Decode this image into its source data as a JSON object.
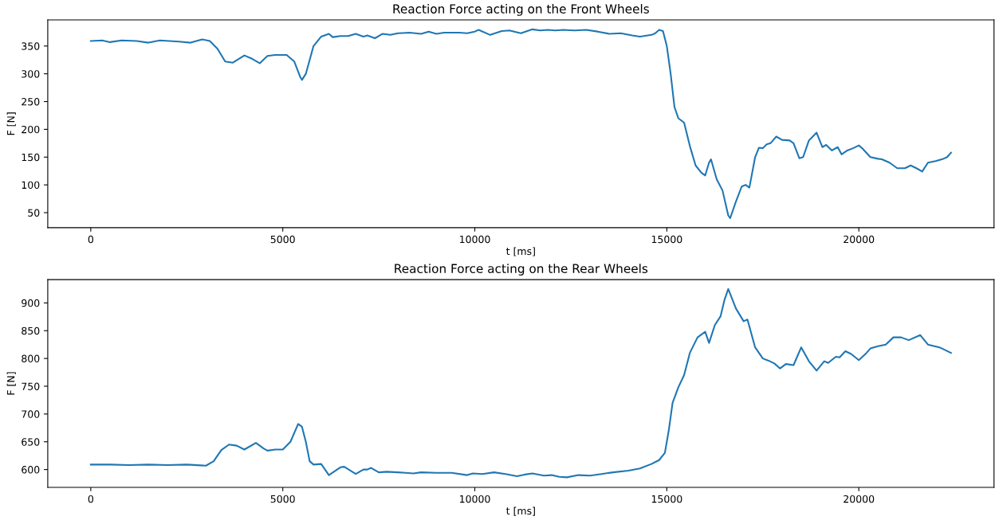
{
  "chart_data": [
    {
      "type": "line",
      "title": "Reaction Force acting on the Front Wheels",
      "xlabel": "t [ms]",
      "ylabel": "F [N]",
      "xlim": [
        -1120,
        23520
      ],
      "ylim": [
        23,
        397
      ],
      "xticks": [
        0,
        5000,
        10000,
        15000,
        20000
      ],
      "yticks": [
        50,
        100,
        150,
        200,
        250,
        300,
        350
      ],
      "grid": false,
      "series": [
        {
          "color": "#1f77b4",
          "x": [
            0,
            300,
            500,
            800,
            1200,
            1500,
            1800,
            2300,
            2600,
            2900,
            3100,
            3300,
            3500,
            3700,
            4000,
            4200,
            4400,
            4600,
            4800,
            5100,
            5300,
            5450,
            5500,
            5600,
            5800,
            6000,
            6200,
            6300,
            6500,
            6700,
            6900,
            7100,
            7200,
            7400,
            7600,
            7800,
            8000,
            8300,
            8600,
            8800,
            9000,
            9200,
            9600,
            9800,
            10000,
            10100,
            10400,
            10700,
            10900,
            11200,
            11500,
            11700,
            11900,
            12100,
            12300,
            12600,
            12900,
            13200,
            13500,
            13800,
            14100,
            14300,
            14600,
            14700,
            14800,
            14900,
            15000,
            15100,
            15200,
            15300,
            15450,
            15600,
            15750,
            15900,
            16000,
            16100,
            16150,
            16300,
            16450,
            16600,
            16650,
            16800,
            16950,
            17050,
            17150,
            17300,
            17400,
            17500,
            17600,
            17700,
            17850,
            18000,
            18200,
            18300,
            18450,
            18550,
            18700,
            18900,
            19050,
            19150,
            19300,
            19450,
            19550,
            19700,
            19850,
            20000,
            20100,
            20300,
            20500,
            20600,
            20800,
            21000,
            21200,
            21350,
            21500,
            21650,
            21800,
            22000,
            22200,
            22300,
            22400
          ],
          "values": [
            359,
            360,
            357,
            360,
            359,
            356,
            360,
            358,
            356,
            362,
            359,
            345,
            322,
            320,
            333,
            327,
            319,
            332,
            334,
            334,
            322,
            295,
            289,
            300,
            350,
            367,
            372,
            366,
            368,
            368,
            372,
            367,
            369,
            364,
            372,
            370,
            373,
            374,
            372,
            376,
            372,
            374,
            374,
            373,
            376,
            379,
            370,
            377,
            378,
            373,
            380,
            378,
            379,
            378,
            379,
            378,
            379,
            376,
            372,
            373,
            369,
            367,
            370,
            373,
            379,
            377,
            350,
            300,
            240,
            220,
            212,
            170,
            135,
            122,
            117,
            140,
            146,
            110,
            90,
            45,
            40,
            70,
            97,
            100,
            95,
            150,
            167,
            166,
            173,
            175,
            187,
            181,
            180,
            175,
            148,
            150,
            180,
            194,
            168,
            172,
            162,
            168,
            155,
            162,
            166,
            171,
            165,
            150,
            147,
            146,
            140,
            130,
            130,
            135,
            130,
            124,
            140,
            143,
            147,
            150,
            158
          ]
        }
      ]
    },
    {
      "type": "line",
      "title": "Reaction Force acting on the Rear Wheels",
      "xlabel": "t [ms]",
      "ylabel": "F [N]",
      "xlim": [
        -1120,
        23520
      ],
      "ylim": [
        568,
        942
      ],
      "xticks": [
        0,
        5000,
        10000,
        15000,
        20000
      ],
      "yticks": [
        600,
        650,
        700,
        750,
        800,
        850,
        900
      ],
      "grid": false,
      "series": [
        {
          "color": "#1f77b4",
          "x": [
            0,
            500,
            1000,
            1500,
            2000,
            2500,
            3000,
            3200,
            3400,
            3600,
            3800,
            4000,
            4300,
            4500,
            4600,
            4800,
            5000,
            5200,
            5400,
            5500,
            5600,
            5700,
            5800,
            6000,
            6200,
            6500,
            6600,
            6900,
            7100,
            7200,
            7300,
            7500,
            7700,
            8000,
            8200,
            8400,
            8600,
            9000,
            9400,
            9800,
            9950,
            10200,
            10500,
            10800,
            11100,
            11300,
            11500,
            11800,
            12000,
            12200,
            12400,
            12700,
            13000,
            13300,
            13600,
            14000,
            14300,
            14600,
            14800,
            14950,
            15050,
            15150,
            15300,
            15450,
            15600,
            15800,
            16000,
            16100,
            16250,
            16400,
            16500,
            16600,
            16800,
            17000,
            17100,
            17300,
            17500,
            17650,
            17800,
            17950,
            18100,
            18300,
            18500,
            18700,
            18900,
            19100,
            19200,
            19400,
            19500,
            19650,
            19800,
            20000,
            20200,
            20300,
            20500,
            20700,
            20900,
            21100,
            21300,
            21600,
            21800,
            22100,
            22400
          ],
          "values": [
            609,
            609,
            608,
            609,
            608,
            609,
            607,
            615,
            635,
            645,
            643,
            636,
            648,
            638,
            634,
            636,
            636,
            650,
            682,
            677,
            650,
            615,
            609,
            610,
            590,
            604,
            605,
            592,
            600,
            600,
            603,
            595,
            596,
            595,
            594,
            593,
            595,
            594,
            594,
            590,
            593,
            592,
            595,
            592,
            588,
            591,
            593,
            589,
            590,
            587,
            586,
            590,
            589,
            592,
            595,
            598,
            602,
            610,
            617,
            630,
            670,
            720,
            748,
            770,
            810,
            838,
            848,
            828,
            860,
            876,
            905,
            925,
            890,
            867,
            870,
            820,
            800,
            796,
            791,
            782,
            790,
            788,
            820,
            795,
            778,
            795,
            792,
            803,
            802,
            813,
            808,
            797,
            810,
            818,
            822,
            825,
            838,
            838,
            833,
            842,
            825,
            820,
            810
          ]
        }
      ]
    }
  ]
}
